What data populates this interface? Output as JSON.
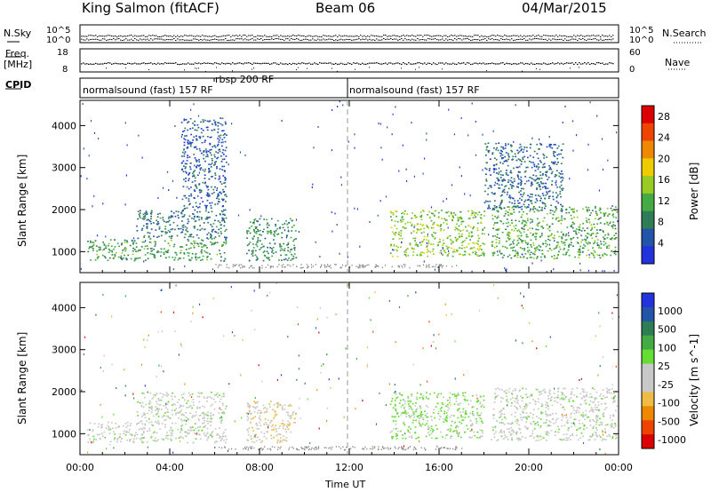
{
  "header": {
    "station": "King Salmon (fitACF)",
    "beam": "Beam 06",
    "date": "04/Mar/2015"
  },
  "top_panels": {
    "nsky_label": "N.Sky",
    "nsky_ticks": [
      "10^5",
      "10^0"
    ],
    "nsearch_label": "N.Search",
    "nsearch_ticks": [
      "10^5",
      "10^0"
    ],
    "freq_label": "Freq.",
    "freq_unit": "[MHz]",
    "freq_ticks": [
      "18",
      "8"
    ],
    "nave_label": "Nave",
    "nave_ticks": [
      "60",
      "0"
    ],
    "cpid_label": "CPID"
  },
  "cpid_segments": [
    {
      "label": "normalsound (fast) 157 RF",
      "start_hour": 0.0
    },
    {
      "label": "rbsp 200 RF",
      "start_hour": 6.0
    },
    {
      "label": "normalsound (fast) 157 RF",
      "start_hour": 12.0
    }
  ],
  "colors": {
    "power": [
      "#2233dd",
      "#2255aa",
      "#2e7d55",
      "#44aa44",
      "#99cc22",
      "#eecc00",
      "#ee8800",
      "#ee4400",
      "#dd0000"
    ],
    "velocity": [
      "#dd0000",
      "#ee4400",
      "#ee8800",
      "#eebb44",
      "#c8c8c8",
      "#c8c8c8",
      "#66dd33",
      "#33aa33",
      "#2e7d55",
      "#2255aa",
      "#2233dd"
    ]
  },
  "chart_data": [
    {
      "type": "heatmap",
      "title": "Power",
      "ylabel": "Slant Range [km]",
      "xlabel": "Time UT",
      "x_ticks": [
        "00:00",
        "04:00",
        "08:00",
        "12:00",
        "16:00",
        "20:00",
        "00:00"
      ],
      "xlim": [
        0,
        24
      ],
      "y_ticks": [
        1000,
        2000,
        3000,
        4000
      ],
      "ylim": [
        500,
        4600
      ],
      "colorbar": {
        "label": "Power [dB]",
        "ticks": [
          4,
          8,
          12,
          16,
          20,
          24,
          28
        ],
        "range": [
          0,
          30
        ]
      },
      "echo_regions": [
        {
          "x": [
            0.3,
            6.5
          ],
          "y": [
            800,
            1300
          ],
          "value": 10
        },
        {
          "x": [
            2.5,
            6.5
          ],
          "y": [
            1300,
            2000
          ],
          "value": 6
        },
        {
          "x": [
            4.5,
            6.5
          ],
          "y": [
            2000,
            4200
          ],
          "value": 4
        },
        {
          "x": [
            7.4,
            9.6
          ],
          "y": [
            800,
            1800
          ],
          "value": 9
        },
        {
          "x": [
            13.8,
            18.0
          ],
          "y": [
            900,
            2000
          ],
          "value": 14
        },
        {
          "x": [
            18.3,
            23.9
          ],
          "y": [
            850,
            2100
          ],
          "value": 11
        },
        {
          "x": [
            18.0,
            21.5
          ],
          "y": [
            2000,
            3600
          ],
          "value": 5
        }
      ]
    },
    {
      "type": "heatmap",
      "title": "Velocity",
      "ylabel": "Slant Range [km]",
      "xlabel": "Time UT",
      "x_ticks": [
        "00:00",
        "04:00",
        "08:00",
        "12:00",
        "16:00",
        "20:00",
        "00:00"
      ],
      "xlim": [
        0,
        24
      ],
      "y_ticks": [
        1000,
        2000,
        3000,
        4000
      ],
      "ylim": [
        500,
        4600
      ],
      "colorbar": {
        "label": "Velocity [m s^-1]",
        "ticks": [
          "1000",
          "500",
          "100",
          "25",
          "-25",
          "-100",
          "-500",
          "-1000"
        ],
        "range": [
          -1200,
          1200
        ]
      },
      "echo_regions": [
        {
          "x": [
            0.3,
            6.5
          ],
          "y": [
            800,
            1300
          ],
          "value": 0
        },
        {
          "x": [
            2.5,
            6.5
          ],
          "y": [
            1300,
            2000
          ],
          "value": 0
        },
        {
          "x": [
            7.4,
            9.6
          ],
          "y": [
            800,
            1800
          ],
          "value": -300
        },
        {
          "x": [
            13.8,
            18.0
          ],
          "y": [
            900,
            2000
          ],
          "value": 150
        },
        {
          "x": [
            18.3,
            23.9
          ],
          "y": [
            850,
            2100
          ],
          "value": 0
        }
      ]
    }
  ]
}
